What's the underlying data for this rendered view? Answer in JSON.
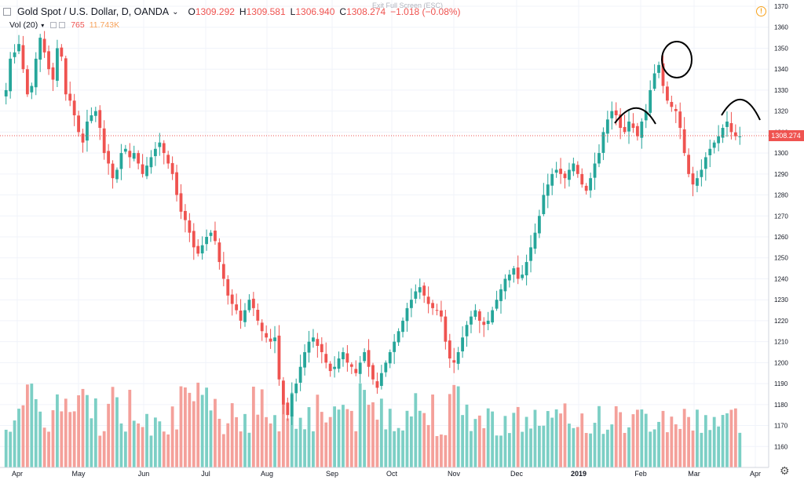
{
  "header": {
    "symbol": "Gold Spot / U.S. Dollar, D, OANDA",
    "open_label": "O",
    "open": "1309.292",
    "high_label": "H",
    "high": "1309.581",
    "low_label": "L",
    "low": "1306.940",
    "close_label": "C",
    "close": "1308.274",
    "change": "−1.018 (−0.08%)"
  },
  "volume_legend": {
    "label": "Vol (20)",
    "value1": "765",
    "value2": "11.743K"
  },
  "exit_fullscreen": "Exit Full Screen (ESC)",
  "colors": {
    "up": "#26a69a",
    "down": "#ef5350",
    "vol_up": "#7ccfc5",
    "vol_down": "#f4a09a",
    "grid": "#f0f3fa",
    "last_price": "#ef5350",
    "annotation": "#000000"
  },
  "chart_data": {
    "type": "candlestick",
    "title": "Gold Spot / U.S. Dollar, D, OANDA",
    "ylim": [
      1150,
      1373
    ],
    "y_ticks": [
      1160,
      1170,
      1180,
      1190,
      1200,
      1210,
      1220,
      1230,
      1240,
      1250,
      1260,
      1270,
      1280,
      1290,
      1300,
      1310,
      1320,
      1330,
      1340,
      1350,
      1360,
      1370
    ],
    "x_tick_labels": [
      "Apr",
      "May",
      "Jun",
      "Jul",
      "Aug",
      "Sep",
      "Oct",
      "Nov",
      "Dec",
      "2019",
      "Feb",
      "Mar",
      "Apr"
    ],
    "last_price": 1308.274,
    "last_price_label": "1308.274",
    "grid": true,
    "close_series": [
      1330,
      1345,
      1348,
      1352,
      1340,
      1328,
      1332,
      1345,
      1355,
      1348,
      1340,
      1335,
      1350,
      1346,
      1328,
      1325,
      1318,
      1310,
      1305,
      1315,
      1318,
      1320,
      1312,
      1300,
      1295,
      1288,
      1292,
      1300,
      1302,
      1298,
      1300,
      1295,
      1290,
      1294,
      1298,
      1302,
      1305,
      1300,
      1295,
      1290,
      1280,
      1272,
      1268,
      1262,
      1255,
      1252,
      1256,
      1260,
      1262,
      1258,
      1248,
      1240,
      1232,
      1228,
      1225,
      1220,
      1225,
      1230,
      1226,
      1220,
      1215,
      1212,
      1210,
      1212,
      1192,
      1180,
      1175,
      1185,
      1190,
      1198,
      1205,
      1210,
      1212,
      1208,
      1205,
      1200,
      1196,
      1198,
      1202,
      1205,
      1200,
      1198,
      1195,
      1200,
      1205,
      1198,
      1192,
      1188,
      1195,
      1200,
      1205,
      1210,
      1215,
      1220,
      1226,
      1230,
      1234,
      1236,
      1232,
      1228,
      1226,
      1225,
      1222,
      1210,
      1202,
      1200,
      1205,
      1212,
      1218,
      1222,
      1225,
      1220,
      1218,
      1220,
      1225,
      1230,
      1235,
      1240,
      1242,
      1245,
      1240,
      1242,
      1248,
      1255,
      1262,
      1270,
      1280,
      1285,
      1290,
      1292,
      1290,
      1288,
      1292,
      1295,
      1290,
      1285,
      1282,
      1288,
      1295,
      1300,
      1310,
      1316,
      1320,
      1318,
      1312,
      1310,
      1315,
      1312,
      1308,
      1315,
      1320,
      1330,
      1338,
      1342,
      1332,
      1325,
      1322,
      1320,
      1312,
      1300,
      1290,
      1285,
      1288,
      1292,
      1298,
      1302,
      1305,
      1308,
      1312,
      1315,
      1310,
      1308,
      1308
    ]
  }
}
